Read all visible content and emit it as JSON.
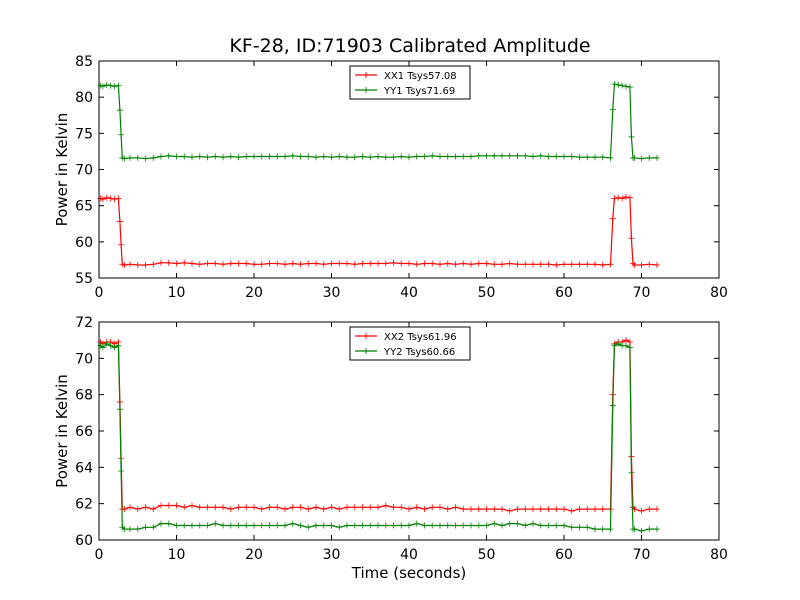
{
  "title": "KF-28, ID:71903 Calibrated Amplitude",
  "chart_data": [
    {
      "type": "line",
      "ylabel": "Power in Kelvin",
      "xlabel": "",
      "xlim": [
        0,
        80
      ],
      "ylim": [
        55,
        85
      ],
      "xticks": [
        0,
        10,
        20,
        30,
        40,
        50,
        60,
        70,
        80
      ],
      "yticks": [
        55,
        60,
        65,
        70,
        75,
        80,
        85
      ],
      "legend": "top-center",
      "grid": false,
      "series": [
        {
          "name": "XX1 Tsys57.08",
          "color": "#ff0000",
          "marker": "+",
          "x": [
            0.2,
            0.5,
            1.0,
            1.5,
            2.0,
            2.5,
            2.7,
            2.85,
            3.0,
            3.3,
            4,
            5,
            6,
            7,
            8,
            9,
            10,
            11,
            12,
            13,
            14,
            15,
            16,
            17,
            18,
            19,
            20,
            21,
            22,
            23,
            24,
            25,
            26,
            27,
            28,
            29,
            30,
            31,
            32,
            33,
            34,
            35,
            36,
            37,
            38,
            39,
            40,
            41,
            42,
            43,
            44,
            45,
            46,
            47,
            48,
            49,
            50,
            51,
            52,
            53,
            54,
            55,
            56,
            57,
            58,
            59,
            60,
            61,
            62,
            63,
            64,
            65,
            66.0,
            66.3,
            66.5,
            67,
            67.5,
            68,
            68.5,
            68.7,
            68.9,
            69.1,
            70,
            71,
            72
          ],
          "values": [
            66.0,
            65.9,
            66.1,
            66.0,
            65.9,
            66.0,
            62.8,
            59.6,
            56.9,
            56.8,
            56.9,
            56.8,
            56.8,
            56.9,
            57.1,
            57.1,
            57.0,
            57.1,
            57.0,
            56.9,
            57.0,
            57.0,
            56.9,
            57.0,
            57.0,
            57.0,
            56.9,
            56.9,
            57.0,
            57.0,
            56.9,
            57.0,
            56.9,
            57.0,
            57.0,
            56.9,
            57.0,
            57.0,
            57.0,
            56.9,
            57.0,
            57.0,
            57.0,
            57.0,
            57.1,
            57.0,
            57.0,
            56.9,
            57.0,
            57.0,
            56.9,
            57.0,
            56.9,
            57.0,
            56.9,
            57.0,
            57.0,
            56.9,
            56.9,
            57.0,
            56.9,
            56.9,
            56.9,
            56.9,
            56.9,
            56.8,
            56.9,
            56.9,
            56.9,
            56.9,
            56.9,
            56.8,
            56.9,
            63.2,
            66.0,
            66.1,
            66.0,
            66.2,
            66.1,
            60.5,
            57.0,
            56.8,
            56.8,
            56.9,
            56.8
          ]
        },
        {
          "name": "YY1 Tsys71.69",
          "color": "#008000",
          "marker": "+",
          "x": [
            0.2,
            0.5,
            1.0,
            1.5,
            2.0,
            2.5,
            2.7,
            2.85,
            3.0,
            3.3,
            4,
            5,
            6,
            7,
            8,
            9,
            10,
            11,
            12,
            13,
            14,
            15,
            16,
            17,
            18,
            19,
            20,
            21,
            22,
            23,
            24,
            25,
            26,
            27,
            28,
            29,
            30,
            31,
            32,
            33,
            34,
            35,
            36,
            37,
            38,
            39,
            40,
            41,
            42,
            43,
            44,
            45,
            46,
            47,
            48,
            49,
            50,
            51,
            52,
            53,
            54,
            55,
            56,
            57,
            58,
            59,
            60,
            61,
            62,
            63,
            64,
            65,
            66.0,
            66.3,
            66.5,
            67,
            67.5,
            68,
            68.5,
            68.7,
            68.9,
            69.1,
            70,
            71,
            72
          ],
          "values": [
            81.6,
            81.5,
            81.7,
            81.6,
            81.5,
            81.6,
            78.2,
            74.8,
            71.6,
            71.5,
            71.6,
            71.6,
            71.5,
            71.6,
            71.8,
            71.9,
            71.8,
            71.8,
            71.7,
            71.8,
            71.7,
            71.8,
            71.7,
            71.8,
            71.7,
            71.8,
            71.8,
            71.8,
            71.8,
            71.8,
            71.8,
            71.9,
            71.8,
            71.8,
            71.7,
            71.8,
            71.7,
            71.8,
            71.7,
            71.7,
            71.8,
            71.7,
            71.8,
            71.7,
            71.7,
            71.8,
            71.7,
            71.8,
            71.8,
            71.9,
            71.8,
            71.8,
            71.8,
            71.8,
            71.8,
            71.9,
            71.9,
            71.9,
            71.9,
            71.9,
            71.9,
            71.9,
            71.8,
            71.9,
            71.8,
            71.8,
            71.8,
            71.8,
            71.7,
            71.7,
            71.7,
            71.7,
            71.6,
            78.3,
            81.8,
            81.7,
            81.6,
            81.5,
            81.4,
            74.5,
            71.6,
            71.6,
            71.5,
            71.6,
            71.6
          ]
        }
      ]
    },
    {
      "type": "line",
      "ylabel": "Power in Kelvin",
      "xlabel": "Time (seconds)",
      "xlim": [
        0,
        80
      ],
      "ylim": [
        60,
        72
      ],
      "xticks": [
        0,
        10,
        20,
        30,
        40,
        50,
        60,
        70,
        80
      ],
      "yticks": [
        60,
        62,
        64,
        66,
        68,
        70,
        72
      ],
      "legend": "top-center",
      "grid": false,
      "series": [
        {
          "name": "XX2 Tsys61.96",
          "color": "#ff0000",
          "marker": "+",
          "x": [
            0.2,
            0.5,
            1.0,
            1.5,
            2.0,
            2.5,
            2.7,
            2.85,
            3.0,
            3.3,
            4,
            5,
            6,
            7,
            8,
            9,
            10,
            11,
            12,
            13,
            14,
            15,
            16,
            17,
            18,
            19,
            20,
            21,
            22,
            23,
            24,
            25,
            26,
            27,
            28,
            29,
            30,
            31,
            32,
            33,
            34,
            35,
            36,
            37,
            38,
            39,
            40,
            41,
            42,
            43,
            44,
            45,
            46,
            47,
            48,
            49,
            50,
            51,
            52,
            53,
            54,
            55,
            56,
            57,
            58,
            59,
            60,
            61,
            62,
            63,
            64,
            65,
            66.0,
            66.3,
            66.5,
            67,
            67.5,
            68,
            68.5,
            68.7,
            68.9,
            69.1,
            70,
            71,
            72
          ],
          "values": [
            70.9,
            70.8,
            70.9,
            70.9,
            70.8,
            70.9,
            67.6,
            64.5,
            61.7,
            61.7,
            61.8,
            61.7,
            61.8,
            61.7,
            61.9,
            61.9,
            61.9,
            61.8,
            61.9,
            61.8,
            61.8,
            61.8,
            61.8,
            61.7,
            61.8,
            61.8,
            61.8,
            61.7,
            61.8,
            61.8,
            61.7,
            61.8,
            61.8,
            61.7,
            61.8,
            61.7,
            61.8,
            61.7,
            61.8,
            61.8,
            61.8,
            61.8,
            61.8,
            61.9,
            61.8,
            61.8,
            61.7,
            61.8,
            61.7,
            61.8,
            61.8,
            61.7,
            61.8,
            61.7,
            61.7,
            61.7,
            61.7,
            61.7,
            61.7,
            61.6,
            61.7,
            61.7,
            61.7,
            61.7,
            61.7,
            61.7,
            61.7,
            61.6,
            61.7,
            61.7,
            61.7,
            61.7,
            61.7,
            68.0,
            70.8,
            70.9,
            70.9,
            71.0,
            70.9,
            64.6,
            61.8,
            61.7,
            61.6,
            61.7,
            61.7
          ]
        },
        {
          "name": "YY2 Tsys60.66",
          "color": "#008000",
          "marker": "+",
          "x": [
            0.2,
            0.5,
            1.0,
            1.5,
            2.0,
            2.5,
            2.7,
            2.85,
            3.0,
            3.3,
            4,
            5,
            6,
            7,
            8,
            9,
            10,
            11,
            12,
            13,
            14,
            15,
            16,
            17,
            18,
            19,
            20,
            21,
            22,
            23,
            24,
            25,
            26,
            27,
            28,
            29,
            30,
            31,
            32,
            33,
            34,
            35,
            36,
            37,
            38,
            39,
            40,
            41,
            42,
            43,
            44,
            45,
            46,
            47,
            48,
            49,
            50,
            51,
            52,
            53,
            54,
            55,
            56,
            57,
            58,
            59,
            60,
            61,
            62,
            63,
            64,
            65,
            66.0,
            66.3,
            66.5,
            67,
            67.5,
            68,
            68.5,
            68.7,
            68.9,
            69.1,
            70,
            71,
            72
          ],
          "values": [
            70.7,
            70.6,
            70.8,
            70.7,
            70.6,
            70.7,
            67.2,
            63.8,
            60.7,
            60.6,
            60.6,
            60.6,
            60.7,
            60.7,
            60.9,
            60.9,
            60.8,
            60.8,
            60.8,
            60.8,
            60.8,
            60.9,
            60.8,
            60.8,
            60.8,
            60.8,
            60.8,
            60.8,
            60.8,
            60.8,
            60.8,
            60.9,
            60.8,
            60.7,
            60.8,
            60.8,
            60.8,
            60.7,
            60.8,
            60.8,
            60.8,
            60.8,
            60.8,
            60.8,
            60.8,
            60.8,
            60.8,
            60.9,
            60.8,
            60.8,
            60.8,
            60.8,
            60.8,
            60.8,
            60.8,
            60.8,
            60.8,
            60.9,
            60.8,
            60.9,
            60.9,
            60.8,
            60.9,
            60.8,
            60.8,
            60.8,
            60.8,
            60.7,
            60.7,
            60.7,
            60.6,
            60.6,
            60.6,
            67.4,
            70.7,
            70.8,
            70.7,
            70.7,
            70.6,
            63.7,
            60.6,
            60.6,
            60.5,
            60.6,
            60.6
          ]
        }
      ]
    }
  ]
}
